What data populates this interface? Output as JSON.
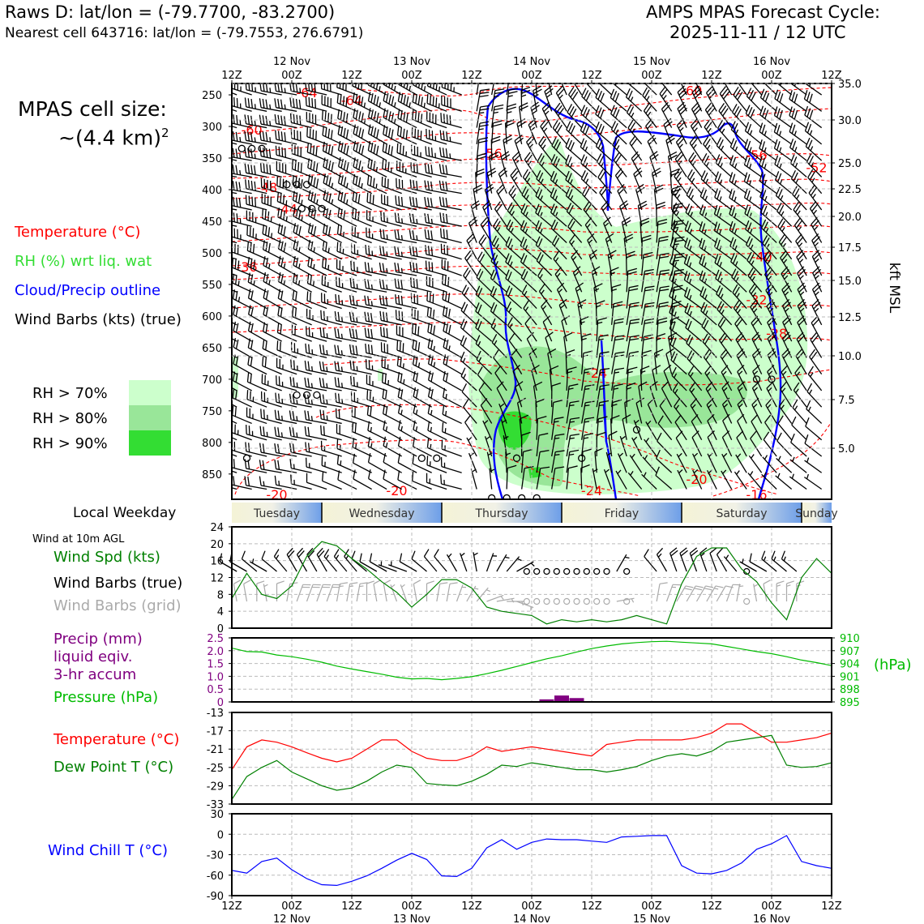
{
  "header": {
    "station_line": "Raws D: lat/lon = (-79.7700, -83.2700)",
    "cell_line": "Nearest cell 643716: lat/lon = (-79.7553, 276.6791)",
    "forecast_title": "AMPS MPAS Forecast Cycle:",
    "forecast_cycle": "2025-11-11 / 12 UTC",
    "cell_size_label": "MPAS cell size:",
    "cell_size_value": "~(4.4 km)",
    "cell_size_exp": "2"
  },
  "colors": {
    "temperature": "#ff0000",
    "rh_text": "#33dd33",
    "cloud": "#0000ff",
    "rh70": "#ccffcc",
    "rh80": "#99e699",
    "rh90": "#33dd33",
    "wind_speed": "#008000",
    "precip": "#800080",
    "pressure": "#00bb00",
    "dewpoint": "#008000",
    "windchill": "#0000ff",
    "grid_barb": "#aaaaaa"
  },
  "time_axis": {
    "tick_labels": [
      "12Z",
      "00Z",
      "12Z",
      "00Z",
      "12Z",
      "00Z",
      "12Z",
      "00Z",
      "12Z",
      "00Z",
      "12Z"
    ],
    "date_labels": [
      "12 Nov",
      "13 Nov",
      "14 Nov",
      "15 Nov",
      "16 Nov"
    ],
    "range_hours": [
      0,
      120
    ]
  },
  "weekday_band": {
    "label": "Local Weekday",
    "days": [
      "Tuesday",
      "Wednesday",
      "Thursday",
      "Friday",
      "Saturday",
      "Sunday"
    ]
  },
  "upper_panel": {
    "legend": [
      "Temperature (°C)",
      "RH (%) wrt liq. wat",
      "Cloud/Precip outline",
      "Wind Barbs (kts) (true)"
    ],
    "rh_legend": [
      "RH > 70%",
      "RH > 80%",
      "RH > 90%"
    ],
    "left_ticks": [
      "250",
      "300",
      "350",
      "400",
      "450",
      "500",
      "550",
      "600",
      "650",
      "700",
      "750",
      "800",
      "850"
    ],
    "right_ticks": [
      "35.0",
      "30.0",
      "25.0",
      "22.5",
      "20.0",
      "17.5",
      "15.0",
      "12.5",
      "10.0",
      "7.5",
      "5.0"
    ],
    "right_axis_label": "kft MSL",
    "isotherm_labels": [
      {
        "text": "-64",
        "t": 15,
        "p": 246
      },
      {
        "text": "-64",
        "t": 24,
        "p": 258
      },
      {
        "text": "-60",
        "t": 92,
        "p": 243
      },
      {
        "text": "-60",
        "t": 4,
        "p": 305
      },
      {
        "text": "-56",
        "t": 52,
        "p": 342
      },
      {
        "text": "-56",
        "t": 105,
        "p": 345
      },
      {
        "text": "-52",
        "t": 117,
        "p": 365
      },
      {
        "text": "-48",
        "t": 7,
        "p": 396
      },
      {
        "text": "-44",
        "t": 11,
        "p": 430
      },
      {
        "text": "-40",
        "t": 106,
        "p": 506
      },
      {
        "text": "-36",
        "t": 3,
        "p": 522
      },
      {
        "text": "-32",
        "t": 105,
        "p": 574
      },
      {
        "text": "-28",
        "t": 109,
        "p": 627
      },
      {
        "text": "-24",
        "t": 73,
        "p": 690
      },
      {
        "text": "-20",
        "t": 9,
        "p": 882
      },
      {
        "text": "-20",
        "t": 33,
        "p": 876
      },
      {
        "text": "-24",
        "t": 72,
        "p": 876
      },
      {
        "text": "-20",
        "t": 93,
        "p": 858
      },
      {
        "text": "-16",
        "t": 105,
        "p": 882
      }
    ]
  },
  "sfc_wind_panel": {
    "title": "Wind at 10m AGL",
    "legend": [
      "Wind Spd (kts)",
      "Wind Barbs (true)",
      "Wind Barbs (grid)"
    ],
    "yticks": [
      "0",
      "4",
      "8",
      "12",
      "16",
      "20",
      "24"
    ]
  },
  "precip_panel": {
    "legend": [
      "Precip (mm)",
      "liquid eqiv.",
      "3-hr accum",
      "Pressure (hPa)"
    ],
    "left_ticks": [
      "0",
      "0.5",
      "1.0",
      "1.5",
      "2.0",
      "2.5"
    ],
    "right_ticks": [
      "895",
      "898",
      "901",
      "904",
      "907",
      "910"
    ],
    "right_axis_label": "(hPa)"
  },
  "temp_panel": {
    "legend": [
      "Temperature (°C)",
      "Dew Point T (°C)"
    ],
    "yticks": [
      "-33",
      "-29",
      "-25",
      "-21",
      "-17",
      "-13"
    ]
  },
  "chill_panel": {
    "legend": [
      "Wind Chill T (°C)"
    ],
    "yticks": [
      "-90",
      "-60",
      "-30",
      "0",
      "30"
    ]
  },
  "chart_data": [
    {
      "type": "line",
      "panel": "wind_speed_10m",
      "x": [
        0,
        3,
        6,
        9,
        12,
        15,
        18,
        21,
        24,
        27,
        30,
        33,
        36,
        39,
        42,
        45,
        48,
        51,
        54,
        57,
        60,
        63,
        66,
        69,
        72,
        75,
        78,
        81,
        84,
        87,
        90,
        93,
        96,
        99,
        102,
        105,
        108,
        111,
        114,
        117,
        120
      ],
      "series": [
        {
          "name": "Wind Spd (kts)",
          "values": [
            7,
            13,
            8,
            7,
            10,
            17,
            20.5,
            19.5,
            16.5,
            14,
            11,
            8.5,
            5,
            8,
            11.5,
            11.5,
            9.5,
            5,
            4,
            3.5,
            3,
            1,
            2,
            1.5,
            2,
            1.5,
            2,
            3,
            2,
            1,
            10.5,
            17,
            19,
            19,
            14,
            11,
            6,
            2,
            12,
            16.5,
            13
          ]
        }
      ],
      "ylim": [
        0,
        24
      ],
      "barbs_true": [
        {
          "t": 1,
          "spd": 10,
          "dir": 300
        },
        {
          "t": 3,
          "spd": 10,
          "dir": 300
        },
        {
          "t": 5,
          "spd": 10,
          "dir": 310
        },
        {
          "t": 7,
          "spd": 5,
          "dir": 300
        },
        {
          "t": 9,
          "spd": 10,
          "dir": 310
        },
        {
          "t": 11,
          "spd": 15,
          "dir": 320
        },
        {
          "t": 13,
          "spd": 20,
          "dir": 330
        },
        {
          "t": 15,
          "spd": 20,
          "dir": 330
        },
        {
          "t": 17,
          "spd": 20,
          "dir": 330
        },
        {
          "t": 19,
          "spd": 20,
          "dir": 330
        },
        {
          "t": 21,
          "spd": 15,
          "dir": 320
        },
        {
          "t": 23,
          "spd": 15,
          "dir": 320
        },
        {
          "t": 25,
          "spd": 15,
          "dir": 320
        },
        {
          "t": 27,
          "spd": 10,
          "dir": 310
        },
        {
          "t": 29,
          "spd": 10,
          "dir": 300
        },
        {
          "t": 31,
          "spd": 10,
          "dir": 300
        },
        {
          "t": 33,
          "spd": 5,
          "dir": 290
        },
        {
          "t": 35,
          "spd": 5,
          "dir": 290
        },
        {
          "t": 37,
          "spd": 10,
          "dir": 300
        },
        {
          "t": 39,
          "spd": 10,
          "dir": 310
        },
        {
          "t": 41,
          "spd": 10,
          "dir": 320
        },
        {
          "t": 43,
          "spd": 10,
          "dir": 320
        },
        {
          "t": 45,
          "spd": 5,
          "dir": 330
        },
        {
          "t": 47,
          "spd": 5,
          "dir": 340
        },
        {
          "t": 49,
          "spd": 5,
          "dir": 350
        },
        {
          "t": 51,
          "spd": 5,
          "dir": 20
        },
        {
          "t": 53,
          "spd": 5,
          "dir": 30
        },
        {
          "t": 55,
          "spd": 5,
          "dir": 40
        },
        {
          "t": 57,
          "spd": 5,
          "dir": 60
        },
        {
          "t": 59,
          "spd": 0,
          "dir": 0
        },
        {
          "t": 61,
          "spd": 0,
          "dir": 0
        },
        {
          "t": 63,
          "spd": 0,
          "dir": 0
        },
        {
          "t": 65,
          "spd": 0,
          "dir": 0
        },
        {
          "t": 67,
          "spd": 0,
          "dir": 0
        },
        {
          "t": 69,
          "spd": 0,
          "dir": 0
        },
        {
          "t": 71,
          "spd": 0,
          "dir": 0
        },
        {
          "t": 73,
          "spd": 0,
          "dir": 0
        },
        {
          "t": 75,
          "spd": 0,
          "dir": 0
        },
        {
          "t": 77,
          "spd": 5,
          "dir": 30
        },
        {
          "t": 79,
          "spd": 0,
          "dir": 0
        },
        {
          "t": 85,
          "spd": 10,
          "dir": 320
        },
        {
          "t": 87,
          "spd": 15,
          "dir": 330
        },
        {
          "t": 89,
          "spd": 20,
          "dir": 340
        },
        {
          "t": 91,
          "spd": 20,
          "dir": 340
        },
        {
          "t": 93,
          "spd": 20,
          "dir": 340
        },
        {
          "t": 95,
          "spd": 15,
          "dir": 340
        },
        {
          "t": 97,
          "spd": 10,
          "dir": 340
        },
        {
          "t": 99,
          "spd": 10,
          "dir": 330
        },
        {
          "t": 101,
          "spd": 5,
          "dir": 320
        },
        {
          "t": 103,
          "spd": 0,
          "dir": 0
        },
        {
          "t": 105,
          "spd": 5,
          "dir": 300
        },
        {
          "t": 107,
          "spd": 10,
          "dir": 300
        },
        {
          "t": 109,
          "spd": 15,
          "dir": 310
        },
        {
          "t": 111,
          "spd": 15,
          "dir": 310
        },
        {
          "t": 113,
          "spd": 15,
          "dir": 310
        }
      ]
    },
    {
      "type": "bar",
      "panel": "precip_3hr",
      "x": [
        63,
        66,
        69
      ],
      "series": [
        {
          "name": "Precip (mm)",
          "values": [
            0.1,
            0.25,
            0.15
          ]
        }
      ],
      "ylim": [
        0,
        2.5
      ]
    },
    {
      "type": "line",
      "panel": "pressure",
      "x": [
        0,
        3,
        6,
        9,
        12,
        15,
        18,
        21,
        24,
        27,
        30,
        33,
        36,
        39,
        42,
        45,
        48,
        51,
        54,
        57,
        60,
        63,
        66,
        69,
        72,
        75,
        78,
        81,
        84,
        87,
        90,
        93,
        96,
        99,
        102,
        105,
        108,
        111,
        114,
        117,
        120
      ],
      "series": [
        {
          "name": "Pressure (hPa)",
          "values": [
            907.6,
            906.8,
            906.7,
            906.0,
            905.6,
            905.0,
            904.3,
            903.4,
            902.7,
            902.1,
            901.5,
            900.8,
            900.4,
            900.5,
            900.2,
            900.5,
            900.9,
            901.6,
            902.4,
            903.3,
            904.2,
            905.1,
            905.8,
            906.7,
            907.5,
            908.1,
            908.6,
            908.9,
            909.1,
            909.2,
            909.0,
            908.8,
            908.6,
            908.0,
            907.4,
            906.8,
            906.3,
            905.6,
            904.8,
            904.2,
            903.5
          ]
        }
      ],
      "ylim": [
        895,
        910
      ]
    },
    {
      "type": "line",
      "panel": "temperature",
      "x": [
        0,
        3,
        6,
        9,
        12,
        15,
        18,
        21,
        24,
        27,
        30,
        33,
        36,
        39,
        42,
        45,
        48,
        51,
        54,
        57,
        60,
        63,
        66,
        69,
        72,
        75,
        78,
        81,
        84,
        87,
        90,
        93,
        96,
        99,
        102,
        105,
        108,
        111,
        114,
        117,
        120
      ],
      "series": [
        {
          "name": "Temperature (°C)",
          "values": [
            -25.5,
            -20.5,
            -19,
            -19.5,
            -20.5,
            -21.8,
            -23,
            -23.8,
            -23,
            -21,
            -19,
            -19,
            -21.5,
            -23,
            -23.5,
            -23.5,
            -22.5,
            -20.5,
            -21.5,
            -21,
            -20.5,
            -21,
            -21.5,
            -22,
            -22.5,
            -20,
            -19.5,
            -19,
            -19,
            -19,
            -19,
            -18.5,
            -17.5,
            -15.5,
            -15.5,
            -17.5,
            -19.5,
            -19.5,
            -19,
            -18.5,
            -17.5
          ]
        },
        {
          "name": "Dew Point T (°C)",
          "values": [
            -32,
            -27,
            -25,
            -23.5,
            -26,
            -27.5,
            -29,
            -30,
            -29.5,
            -28,
            -26,
            -24.5,
            -25,
            -28.5,
            -28.8,
            -29,
            -28,
            -26.5,
            -24.5,
            -24.8,
            -24,
            -24.5,
            -25,
            -25.5,
            -25.5,
            -26,
            -25.5,
            -24.8,
            -23.5,
            -22.5,
            -22,
            -22.5,
            -21.5,
            -19.5,
            -19,
            -18.5,
            -18,
            -24.5,
            -25,
            -24.8,
            -24
          ]
        }
      ],
      "ylim": [
        -33,
        -13
      ]
    },
    {
      "type": "line",
      "panel": "wind_chill",
      "x": [
        0,
        3,
        6,
        9,
        12,
        15,
        18,
        21,
        24,
        27,
        30,
        33,
        36,
        39,
        42,
        45,
        48,
        51,
        54,
        57,
        60,
        63,
        66,
        69,
        72,
        75,
        78,
        81,
        84,
        87,
        90,
        93,
        96,
        99,
        102,
        105,
        108,
        111,
        114,
        117,
        120
      ],
      "series": [
        {
          "name": "Wind Chill T (°C)",
          "values": [
            -53,
            -57,
            -40,
            -35,
            -52,
            -65,
            -74,
            -75,
            -69,
            -61,
            -50,
            -38,
            -28,
            -37,
            -61,
            -62,
            -50,
            -20,
            -8,
            -22,
            -12,
            -7,
            -8,
            -8,
            -10,
            -12,
            -4,
            -3,
            -2,
            -2,
            -46,
            -57,
            -58,
            -53,
            -42,
            -22,
            -14,
            -2,
            -40,
            -46,
            -50
          ]
        }
      ],
      "ylim": [
        -90,
        30
      ]
    }
  ]
}
